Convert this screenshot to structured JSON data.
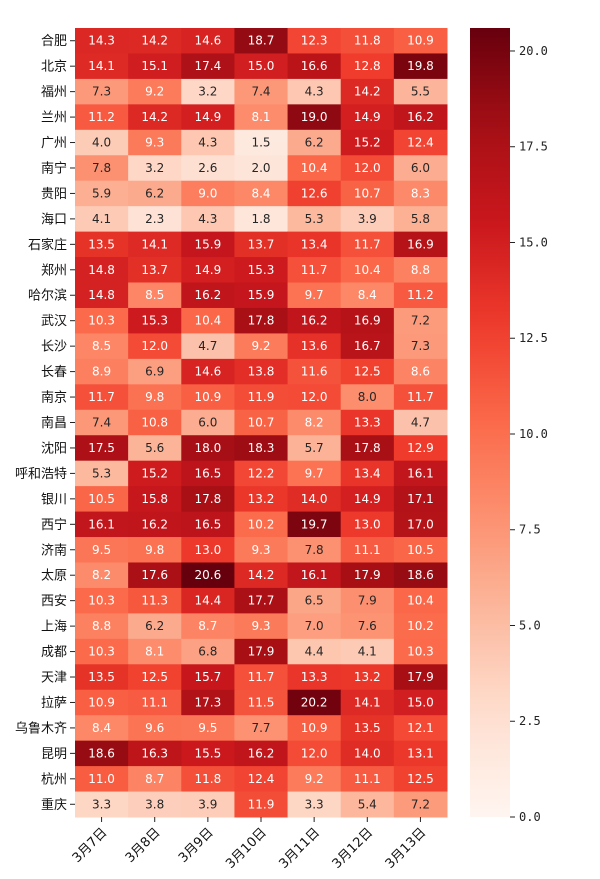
{
  "chart_data": {
    "type": "heatmap",
    "title": "",
    "xlabel": "",
    "ylabel": "",
    "colormap": "Reds",
    "vmin": 0,
    "vmax": 20.6,
    "colorbar_ticks": [
      "0.0",
      "2.5",
      "5.0",
      "7.5",
      "10.0",
      "12.5",
      "15.0",
      "17.5",
      "20.0"
    ],
    "colorbar_tick_values": [
      0,
      2.5,
      5,
      7.5,
      10,
      12.5,
      15,
      17.5,
      20
    ],
    "colorbar_placement": "right",
    "x_categories": [
      "3月7日",
      "3月8日",
      "3月9日",
      "3月10日",
      "3月11日",
      "3月12日",
      "3月13日"
    ],
    "y_categories": [
      "合肥",
      "北京",
      "福州",
      "兰州",
      "广州",
      "南宁",
      "贵阳",
      "海口",
      "石家庄",
      "郑州",
      "哈尔滨",
      "武汉",
      "长沙",
      "长春",
      "南京",
      "南昌",
      "沈阳",
      "呼和浩特",
      "银川",
      "西宁",
      "济南",
      "太原",
      "西安",
      "上海",
      "成都",
      "天津",
      "拉萨",
      "乌鲁木齐",
      "昆明",
      "杭州",
      "重庆"
    ],
    "values": [
      [
        14.3,
        14.2,
        14.6,
        18.7,
        12.3,
        11.8,
        10.9
      ],
      [
        14.1,
        15.1,
        17.4,
        15.0,
        16.6,
        12.8,
        19.8
      ],
      [
        7.3,
        9.2,
        3.2,
        7.4,
        4.3,
        14.2,
        5.5
      ],
      [
        11.2,
        14.2,
        14.9,
        8.1,
        19.0,
        14.9,
        16.2
      ],
      [
        4.0,
        9.3,
        4.3,
        1.5,
        6.2,
        15.2,
        12.4
      ],
      [
        7.8,
        3.2,
        2.6,
        2.0,
        10.4,
        12.0,
        6.0
      ],
      [
        5.9,
        6.2,
        9.0,
        8.4,
        12.6,
        10.7,
        8.3
      ],
      [
        4.1,
        2.3,
        4.3,
        1.8,
        5.3,
        3.9,
        5.8
      ],
      [
        13.5,
        14.1,
        15.9,
        13.7,
        13.4,
        11.7,
        16.9
      ],
      [
        14.8,
        13.7,
        14.9,
        15.3,
        11.7,
        10.4,
        8.8
      ],
      [
        14.8,
        8.5,
        16.2,
        15.9,
        9.7,
        8.4,
        11.2
      ],
      [
        10.3,
        15.3,
        10.4,
        17.8,
        16.2,
        16.9,
        7.2
      ],
      [
        8.5,
        12.0,
        4.7,
        9.2,
        13.6,
        16.7,
        7.3
      ],
      [
        8.9,
        6.9,
        14.6,
        13.8,
        11.6,
        12.5,
        8.6
      ],
      [
        11.7,
        9.8,
        10.9,
        11.9,
        12.0,
        8.0,
        11.7
      ],
      [
        7.4,
        10.8,
        6.0,
        10.7,
        8.2,
        13.3,
        4.7
      ],
      [
        17.5,
        5.6,
        18.0,
        18.3,
        5.7,
        17.8,
        12.9
      ],
      [
        5.3,
        15.2,
        16.5,
        12.2,
        9.7,
        13.4,
        16.1
      ],
      [
        10.5,
        15.8,
        17.8,
        13.2,
        14.0,
        14.9,
        17.1
      ],
      [
        16.1,
        16.2,
        16.5,
        10.2,
        19.7,
        13.0,
        17.0
      ],
      [
        9.5,
        9.8,
        13.0,
        9.3,
        7.8,
        11.1,
        10.5
      ],
      [
        8.2,
        17.6,
        20.6,
        14.2,
        16.1,
        17.9,
        18.6
      ],
      [
        10.3,
        11.3,
        14.4,
        17.7,
        6.5,
        7.9,
        10.4
      ],
      [
        8.8,
        6.2,
        8.7,
        9.3,
        7.0,
        7.6,
        10.2
      ],
      [
        10.3,
        8.1,
        6.8,
        17.9,
        4.4,
        4.1,
        10.3
      ],
      [
        13.5,
        12.5,
        15.7,
        11.7,
        13.3,
        13.2,
        17.9
      ],
      [
        10.9,
        11.1,
        17.3,
        11.5,
        20.2,
        14.1,
        15.0
      ],
      [
        8.4,
        9.6,
        9.5,
        7.7,
        10.9,
        13.5,
        12.1
      ],
      [
        18.6,
        16.3,
        15.5,
        16.2,
        12.0,
        14.0,
        13.1
      ],
      [
        11.0,
        8.7,
        11.8,
        12.4,
        9.2,
        11.1,
        12.5
      ],
      [
        3.3,
        3.8,
        3.9,
        11.9,
        3.3,
        5.4,
        7.2
      ]
    ],
    "annotation_format": "0.1f",
    "grid": false,
    "legend": "none"
  }
}
